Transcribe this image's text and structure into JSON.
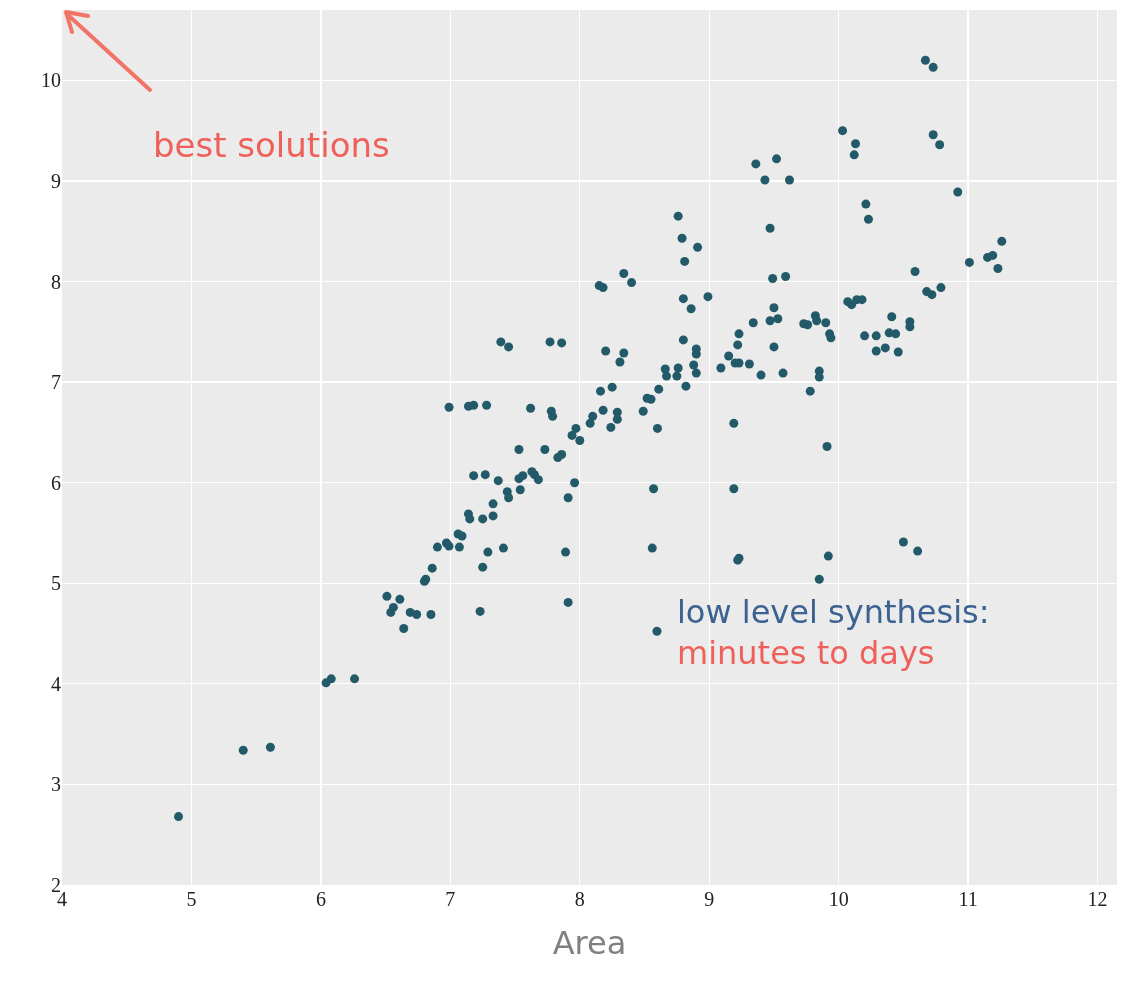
{
  "chart_data": {
    "type": "scatter",
    "xlabel": "Area",
    "xlim": [
      4,
      12.15
    ],
    "xticks": [
      4,
      5,
      6,
      7,
      8,
      9,
      10,
      11,
      12
    ],
    "ylim": [
      2,
      10.7
    ],
    "yticks": [
      2,
      3,
      4,
      5,
      6,
      7,
      8,
      9,
      10
    ],
    "grid": true,
    "legend": "bottom right",
    "marker": "circle",
    "annotations": [
      "best solutions"
    ],
    "series": [
      {
        "name": "low level synthesis: minutes to days",
        "color": "#235a69",
        "x": [
          4.9,
          5.4,
          5.61,
          6.04,
          6.08,
          6.26,
          6.51,
          6.61,
          6.56,
          6.54,
          6.69,
          6.74,
          6.85,
          6.64,
          6.86,
          6.8,
          6.81,
          6.9,
          6.97,
          6.99,
          7.07,
          7.06,
          7.09,
          7.14,
          7.15,
          7.25,
          7.33,
          7.33,
          7.29,
          7.41,
          7.25,
          7.23,
          7.89,
          7.91,
          7.37,
          7.44,
          7.45,
          7.54,
          7.53,
          7.56,
          7.63,
          7.65,
          7.68,
          7.96,
          7.91,
          7.18,
          7.27,
          6.99,
          7.14,
          7.18,
          7.28,
          7.62,
          7.78,
          7.79,
          7.39,
          7.45,
          7.77,
          7.86,
          7.53,
          7.73,
          7.83,
          7.86,
          7.97,
          7.94,
          8.0,
          8.16,
          8.25,
          8.18,
          8.1,
          8.08,
          8.29,
          8.29,
          8.24,
          8.49,
          8.52,
          8.55,
          8.61,
          8.6,
          8.57,
          8.56,
          8.2,
          8.34,
          8.31,
          8.15,
          8.18,
          8.34,
          8.4,
          8.81,
          8.8,
          8.86,
          8.99,
          8.76,
          8.79,
          8.91,
          8.8,
          8.9,
          8.9,
          8.66,
          8.67,
          8.76,
          8.75,
          8.88,
          8.9,
          8.82,
          9.09,
          9.15,
          9.2,
          9.23,
          9.22,
          9.23,
          9.31,
          9.34,
          9.4,
          9.47,
          9.53,
          9.5,
          9.5,
          9.57,
          9.73,
          9.76,
          9.82,
          9.83,
          9.9,
          9.85,
          9.85,
          9.78,
          9.93,
          9.94,
          10.07,
          10.1,
          10.14,
          10.18,
          10.2,
          9.19,
          9.91,
          9.19,
          9.22,
          9.23,
          9.92,
          9.85,
          9.43,
          9.62,
          9.36,
          9.52,
          9.47,
          9.49,
          9.59,
          10.67,
          10.73,
          10.03,
          10.13,
          10.12,
          10.73,
          10.78,
          10.92,
          10.21,
          10.23,
          11.26,
          11.01,
          11.15,
          11.19,
          11.23,
          10.59,
          10.68,
          10.72,
          10.79,
          10.41,
          10.55,
          10.55,
          10.29,
          10.39,
          10.44,
          10.29,
          10.36,
          10.46,
          10.5,
          10.61
        ],
        "values": [
          2.68,
          3.34,
          3.37,
          4.01,
          4.05,
          4.05,
          4.87,
          4.84,
          4.76,
          4.71,
          4.71,
          4.69,
          4.69,
          4.55,
          5.15,
          5.02,
          5.04,
          5.36,
          5.4,
          5.37,
          5.36,
          5.49,
          5.47,
          5.69,
          5.64,
          5.64,
          5.79,
          5.67,
          5.31,
          5.35,
          5.16,
          4.72,
          5.31,
          4.81,
          6.02,
          5.91,
          5.85,
          5.93,
          6.04,
          6.07,
          6.11,
          6.08,
          6.03,
          6.0,
          5.85,
          6.07,
          6.08,
          6.75,
          6.76,
          6.77,
          6.77,
          6.74,
          6.71,
          6.66,
          7.4,
          7.35,
          7.4,
          7.39,
          6.33,
          6.33,
          6.25,
          6.28,
          6.54,
          6.47,
          6.42,
          6.91,
          6.95,
          6.72,
          6.66,
          6.59,
          6.7,
          6.63,
          6.55,
          6.71,
          6.84,
          6.83,
          6.93,
          6.54,
          5.94,
          5.35,
          7.31,
          7.29,
          7.2,
          7.96,
          7.94,
          8.08,
          7.99,
          8.2,
          7.83,
          7.73,
          7.85,
          8.65,
          8.43,
          8.34,
          7.42,
          7.33,
          7.28,
          7.13,
          7.06,
          7.14,
          7.06,
          7.17,
          7.09,
          6.96,
          7.14,
          7.26,
          7.19,
          7.19,
          7.37,
          7.48,
          7.18,
          7.59,
          7.07,
          7.61,
          7.63,
          7.74,
          7.35,
          7.09,
          7.58,
          7.57,
          7.66,
          7.61,
          7.59,
          7.11,
          7.05,
          6.91,
          7.48,
          7.44,
          7.8,
          7.77,
          7.82,
          7.82,
          7.46,
          6.59,
          6.36,
          5.94,
          5.23,
          5.25,
          5.27,
          5.04,
          9.01,
          9.01,
          9.17,
          9.22,
          8.53,
          8.03,
          8.05,
          10.2,
          10.13,
          9.5,
          9.37,
          9.26,
          9.46,
          9.36,
          8.89,
          8.77,
          8.62,
          8.4,
          8.19,
          8.24,
          8.26,
          8.13,
          8.1,
          7.9,
          7.87,
          7.94,
          7.65,
          7.6,
          7.55,
          7.46,
          7.49,
          7.48,
          7.31,
          7.34,
          7.3,
          5.41,
          5.32
        ]
      }
    ]
  }
}
